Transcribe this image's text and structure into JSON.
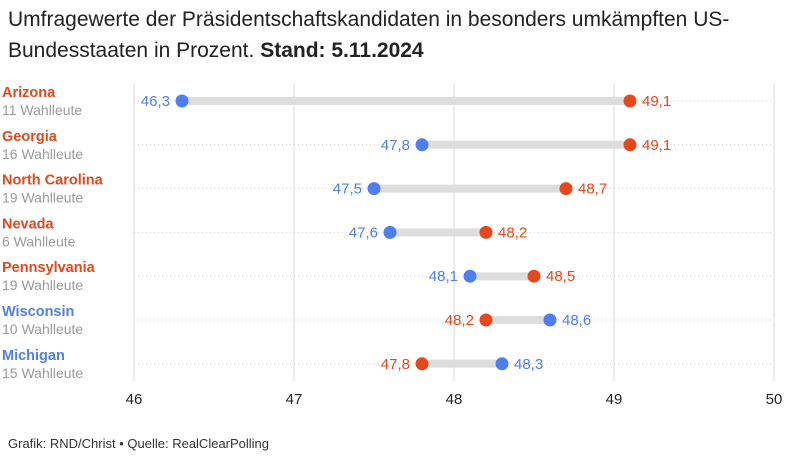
{
  "title": {
    "text": "Umfragewerte der Präsidentschaftskandidaten in besonders umkämpften US-Bundesstaaten in Prozent.",
    "stand": "Stand: 5.11.2024"
  },
  "footer": "Grafik: RND/Christ • Quelle: RealClearPolling",
  "colors": {
    "blue": "#4f7fef",
    "orange": "#e4481e",
    "bar": "#dddddd",
    "grid": "#d9d9d9",
    "sub": "#9a9a9a"
  },
  "chart_data": {
    "type": "dumbbell",
    "xlim": [
      46,
      50
    ],
    "xticks": [
      "46",
      "47",
      "48",
      "49",
      "50"
    ],
    "series": [
      {
        "color": "blue"
      },
      {
        "color": "orange"
      }
    ],
    "rows": [
      {
        "state": "Arizona",
        "sub": "11 Wahlleute",
        "blue": 46.3,
        "blue_label": "46,3",
        "orange": 49.1,
        "orange_label": "49,1",
        "winner": "orange"
      },
      {
        "state": "Georgia",
        "sub": "16 Wahlleute",
        "blue": 47.8,
        "blue_label": "47,8",
        "orange": 49.1,
        "orange_label": "49,1",
        "winner": "orange"
      },
      {
        "state": "North Carolina",
        "sub": "19 Wahlleute",
        "blue": 47.5,
        "blue_label": "47,5",
        "orange": 48.7,
        "orange_label": "48,7",
        "winner": "orange"
      },
      {
        "state": "Nevada",
        "sub": "6 Wahlleute",
        "blue": 47.6,
        "blue_label": "47,6",
        "orange": 48.2,
        "orange_label": "48,2",
        "winner": "orange"
      },
      {
        "state": "Pennsylvania",
        "sub": "19 Wahlleute",
        "blue": 48.1,
        "blue_label": "48,1",
        "orange": 48.5,
        "orange_label": "48,5",
        "winner": "orange"
      },
      {
        "state": "Wisconsin",
        "sub": "10 Wahlleute",
        "blue": 48.6,
        "blue_label": "48,6",
        "orange": 48.2,
        "orange_label": "48,2",
        "winner": "blue"
      },
      {
        "state": "Michigan",
        "sub": "15 Wahlleute",
        "blue": 48.3,
        "blue_label": "48,3",
        "orange": 47.8,
        "orange_label": "47,8",
        "winner": "blue"
      }
    ]
  }
}
